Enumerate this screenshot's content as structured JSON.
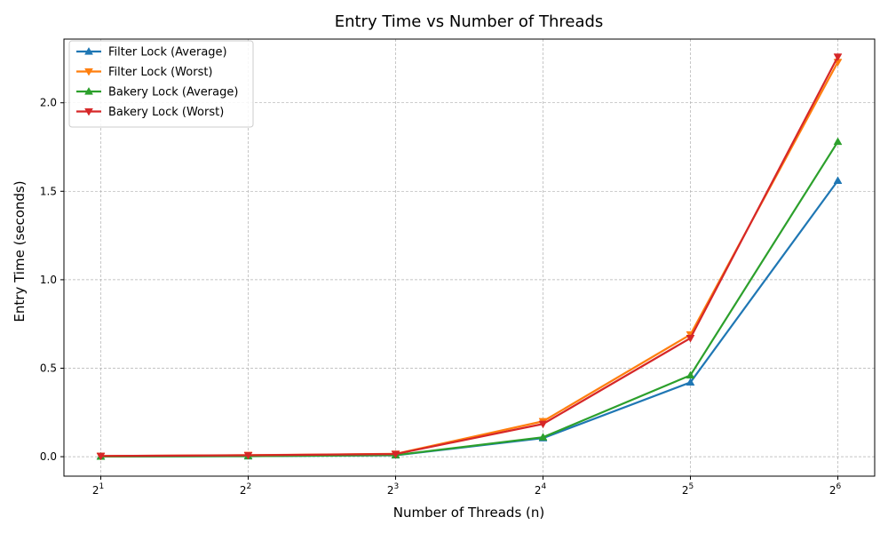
{
  "chart_data": {
    "type": "line",
    "title": "Entry Time vs Number of Threads",
    "xlabel": "Number of Threads (n)",
    "ylabel": "Entry Time (seconds)",
    "x_scale": "log2",
    "x": [
      2,
      4,
      8,
      16,
      32,
      64
    ],
    "x_tick_labels": [
      {
        "base": "2",
        "exp": "1"
      },
      {
        "base": "2",
        "exp": "2"
      },
      {
        "base": "2",
        "exp": "3"
      },
      {
        "base": "2",
        "exp": "4"
      },
      {
        "base": "2",
        "exp": "5"
      },
      {
        "base": "2",
        "exp": "6"
      }
    ],
    "ylim": [
      -0.11,
      2.36
    ],
    "y_ticks": [
      0.0,
      0.5,
      1.0,
      1.5,
      2.0
    ],
    "y_tick_labels": [
      "0.0",
      "0.5",
      "1.0",
      "1.5",
      "2.0"
    ],
    "grid": true,
    "legend_position": "top-left",
    "series": [
      {
        "name": "Filter Lock (Average)",
        "color": "#1f77b4",
        "marker": "triangle-up",
        "values": [
          0.001,
          0.003,
          0.008,
          0.105,
          0.42,
          1.56
        ]
      },
      {
        "name": "Filter Lock (Worst)",
        "color": "#ff7f0e",
        "marker": "triangle-down",
        "values": [
          0.004,
          0.009,
          0.016,
          0.2,
          0.69,
          2.23
        ]
      },
      {
        "name": "Bakery Lock (Average)",
        "color": "#2ca02c",
        "marker": "triangle-up",
        "values": [
          0.001,
          0.003,
          0.009,
          0.11,
          0.46,
          1.78
        ]
      },
      {
        "name": "Bakery Lock (Worst)",
        "color": "#d62728",
        "marker": "triangle-down",
        "values": [
          0.004,
          0.008,
          0.015,
          0.185,
          0.67,
          2.26
        ]
      }
    ]
  }
}
